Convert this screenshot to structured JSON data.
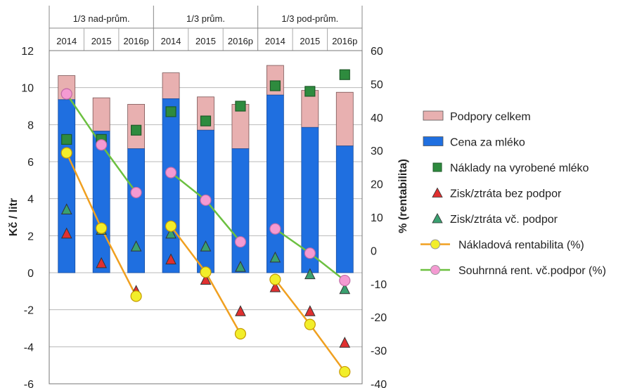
{
  "chart_data": {
    "type": "bar",
    "groups": [
      "1/3 nad-prům.",
      "1/3 prům.",
      "1/3 pod-prům."
    ],
    "categories": [
      "2014",
      "2015",
      "2016p",
      "2014",
      "2015",
      "2016p",
      "2014",
      "2015",
      "2016p"
    ],
    "ylabel": "Kč / litr",
    "y2label": "% (rentabilita)",
    "ylim": [
      -6,
      12
    ],
    "y2lim": [
      -40,
      60
    ],
    "yticks": [
      "12",
      "10",
      "8",
      "6",
      "4",
      "2",
      "0",
      "-2",
      "-4",
      "-6"
    ],
    "y2ticks": [
      "60",
      "50",
      "40",
      "30",
      "20",
      "10",
      "0",
      "-10",
      "-20",
      "-30",
      "-40"
    ],
    "grid": true,
    "legend": "right",
    "bar_series": [
      {
        "name": "Podpory celkem",
        "color": "#e8b0b0",
        "stacked_top": true,
        "values": [
          1.3,
          1.8,
          2.4,
          1.4,
          1.8,
          2.4,
          1.6,
          2.0,
          2.9
        ]
      },
      {
        "name": "Cena za mléko",
        "color": "#1f6fe0",
        "values": [
          9.35,
          7.65,
          6.7,
          9.4,
          7.7,
          6.7,
          9.6,
          7.85,
          6.85
        ]
      }
    ],
    "marker_series": [
      {
        "name": "Náklady na vyrobené mléko",
        "axis": "left",
        "marker": "square",
        "color": "#2e8b3e",
        "values": [
          7.2,
          7.2,
          7.7,
          8.7,
          8.2,
          9.0,
          10.1,
          9.8,
          10.7
        ]
      },
      {
        "name": "Zisk/ztráta bez podpor",
        "axis": "left",
        "marker": "triangle",
        "color": "#e03030",
        "values": [
          2.1,
          0.5,
          -1.0,
          0.7,
          -0.4,
          -2.1,
          -0.8,
          -2.1,
          -3.8
        ]
      },
      {
        "name": "Zisk/ztráta vč. podpor",
        "axis": "left",
        "marker": "triangle",
        "color": "#3aa070",
        "values": [
          3.4,
          2.3,
          1.4,
          2.1,
          1.4,
          0.3,
          0.8,
          -0.1,
          -0.9
        ]
      }
    ],
    "line_series": [
      {
        "name": "Nákladová rentabilita (%)",
        "axis": "right",
        "marker": "circle",
        "color": "#f2ee2a",
        "line_color": "#f0a020",
        "segments": [
          [
            29.3,
            6.7,
            -13.7
          ],
          [
            7.3,
            -6.5,
            -25.0
          ],
          [
            -8.7,
            -22.2,
            -36.4
          ]
        ]
      },
      {
        "name": "Souhrnná rent. vč.podpor (%)",
        "axis": "right",
        "marker": "circle",
        "color": "#f49ad2",
        "line_color": "#6cc040",
        "segments": [
          [
            47.0,
            31.7,
            17.4
          ],
          [
            23.4,
            15.1,
            2.6
          ],
          [
            6.5,
            -0.8,
            -9.0
          ]
        ]
      }
    ]
  }
}
